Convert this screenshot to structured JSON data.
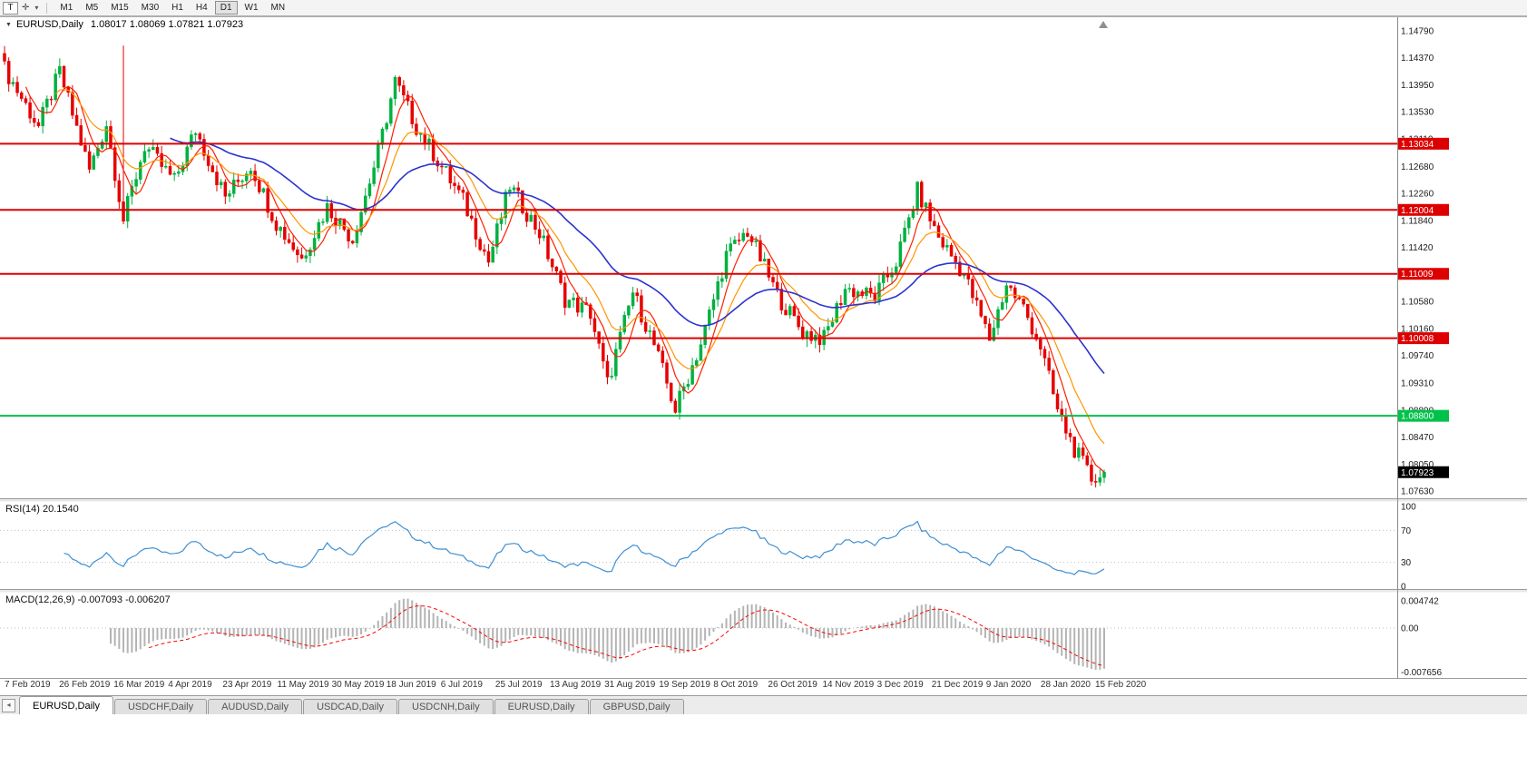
{
  "icons": {
    "templates_button": "T",
    "crosshair": "✛",
    "caret": "▾",
    "title_dropdown": "▼"
  },
  "toolbar": {
    "timeframes": [
      "M1",
      "M5",
      "M15",
      "M30",
      "H1",
      "H4",
      "D1",
      "W1",
      "MN"
    ],
    "active_timeframe": "D1"
  },
  "chart_header": {
    "symbol": "EURUSD,Daily",
    "ohlc": "1.08017 1.08069 1.07821 1.07923"
  },
  "main_chart": {
    "price_axis_max": 1.1479,
    "price_axis_min": 1.0763,
    "price_axis_ticks": [
      "1.14790",
      "1.14370",
      "1.13950",
      "1.13530",
      "1.13110",
      "1.12680",
      "1.12260",
      "1.11840",
      "1.11420",
      "1.11000",
      "1.10580",
      "1.10160",
      "1.09740",
      "1.09310",
      "1.08890",
      "1.08470",
      "1.08050",
      "1.07630"
    ],
    "levels": [
      {
        "price": 1.13034,
        "label": "1.13034",
        "color": "#dd0000",
        "type": "resistance"
      },
      {
        "price": 1.12004,
        "label": "1.12004",
        "color": "#dd0000",
        "type": "resistance"
      },
      {
        "price": 1.11009,
        "label": "1.11009",
        "color": "#dd0000",
        "type": "resistance"
      },
      {
        "price": 1.10008,
        "label": "1.10008",
        "color": "#dd0000",
        "type": "resistance"
      },
      {
        "price": 1.088,
        "label": "1.08800",
        "color": "#00c24a",
        "type": "support"
      }
    ],
    "current_price": {
      "price": 1.07923,
      "label": "1.07923",
      "color": "#000000"
    }
  },
  "chart_data": {
    "type": "candlestick",
    "symbol": "EURUSD",
    "timeframe": "Daily",
    "open": 1.08017,
    "high": 1.08069,
    "low": 1.07821,
    "close": 1.07923,
    "candle_count": 260,
    "bull_color": "#00b140",
    "bear_color": "#e60000",
    "x_labels": [
      "7 Feb 2019",
      "26 Feb 2019",
      "16 Mar 2019",
      "4 Apr 2019",
      "23 Apr 2019",
      "11 May 2019",
      "30 May 2019",
      "18 Jun 2019",
      "6 Jul 2019",
      "25 Jul 2019",
      "13 Aug 2019",
      "31 Aug 2019",
      "19 Sep 2019",
      "8 Oct 2019",
      "26 Oct 2019",
      "14 Nov 2019",
      "3 Dec 2019",
      "21 Dec 2019",
      "9 Jan 2020",
      "28 Jan 2020",
      "15 Feb 2020"
    ],
    "close_keypoints": [
      [
        0,
        1.142
      ],
      [
        8,
        1.133
      ],
      [
        13,
        1.1415
      ],
      [
        20,
        1.1262
      ],
      [
        24,
        1.1335
      ],
      [
        28,
        1.1185
      ],
      [
        33,
        1.13
      ],
      [
        40,
        1.1245
      ],
      [
        45,
        1.1325
      ],
      [
        52,
        1.122
      ],
      [
        58,
        1.127
      ],
      [
        64,
        1.118
      ],
      [
        70,
        1.1125
      ],
      [
        76,
        1.1205
      ],
      [
        82,
        1.1155
      ],
      [
        88,
        1.129
      ],
      [
        92,
        1.14
      ],
      [
        97,
        1.133
      ],
      [
        102,
        1.1278
      ],
      [
        108,
        1.1215
      ],
      [
        114,
        1.112
      ],
      [
        119,
        1.1238
      ],
      [
        126,
        1.1165
      ],
      [
        132,
        1.1062
      ],
      [
        138,
        1.104
      ],
      [
        142,
        1.093
      ],
      [
        148,
        1.1072
      ],
      [
        153,
        1.099
      ],
      [
        158,
        1.089
      ],
      [
        164,
        1.0992
      ],
      [
        170,
        1.113
      ],
      [
        175,
        1.1168
      ],
      [
        182,
        1.1068
      ],
      [
        188,
        1.101
      ],
      [
        193,
        1.1
      ],
      [
        198,
        1.1078
      ],
      [
        205,
        1.1065
      ],
      [
        210,
        1.112
      ],
      [
        215,
        1.123
      ],
      [
        220,
        1.1158
      ],
      [
        226,
        1.11
      ],
      [
        232,
        1.1
      ],
      [
        236,
        1.1085
      ],
      [
        240,
        1.1048
      ],
      [
        244,
        1.0988
      ],
      [
        248,
        1.0888
      ],
      [
        252,
        1.0828
      ],
      [
        256,
        1.0782
      ],
      [
        259,
        1.0792
      ]
    ],
    "spike": {
      "index": 28,
      "high": 1.1456,
      "low": 1.1178
    },
    "moving_averages": [
      {
        "name": "fast",
        "period": 6,
        "type": "sma",
        "color": "#ff1e00"
      },
      {
        "name": "medium",
        "period": 13,
        "type": "ema",
        "color": "#ff9500"
      },
      {
        "name": "slow",
        "period": 40,
        "type": "ema",
        "color": "#2b34cf"
      }
    ],
    "rsi": {
      "title": "RSI(14) 20.1540",
      "period": 14,
      "value": 20.154,
      "levels": [
        "100",
        "70",
        "30",
        "0"
      ],
      "line_color": "#3f8fd2"
    },
    "macd": {
      "title": "MACD(12,26,9) -0.007093 -0.006207",
      "fast": 12,
      "slow": 26,
      "signal": 9,
      "macd_value": -0.007093,
      "signal_value": -0.006207,
      "axis_labels": [
        "0.004742",
        "0.00",
        "-0.007656"
      ],
      "histogram_color": "#b4b4b4",
      "signal_color": "#ff0000"
    }
  },
  "bottom_tabs": {
    "items": [
      {
        "label": "EURUSD,Daily",
        "active": true
      },
      {
        "label": "USDCHF,Daily",
        "active": false
      },
      {
        "label": "AUDUSD,Daily",
        "active": false
      },
      {
        "label": "USDCAD,Daily",
        "active": false
      },
      {
        "label": "USDCNH,Daily",
        "active": false
      },
      {
        "label": "EURUSD,Daily",
        "active": false
      },
      {
        "label": "GBPUSD,Daily",
        "active": false
      }
    ]
  }
}
